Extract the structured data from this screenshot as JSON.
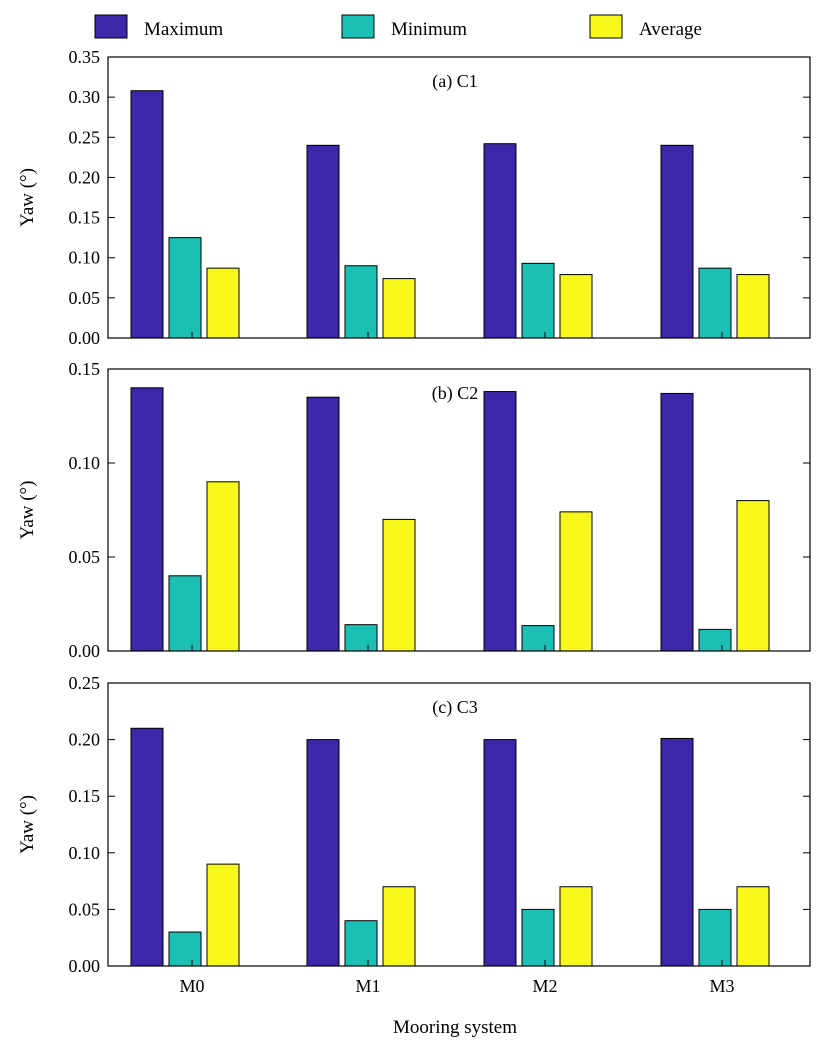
{
  "chart_data": {
    "type": "bar",
    "categories": [
      "M0",
      "M1",
      "M2",
      "M3"
    ],
    "xlabel": "Mooring system",
    "ylabel": "Yaw (°)",
    "legend": [
      {
        "name": "Maximum",
        "color": "#3b28a8"
      },
      {
        "name": "Minimum",
        "color": "#1cbfb3"
      },
      {
        "name": "Average",
        "color": "#f8f71a"
      }
    ],
    "panels": [
      {
        "title": "(a) C1",
        "ylim": [
          0,
          0.35
        ],
        "yticks": [
          "0.00",
          "0.05",
          "0.10",
          "0.15",
          "0.20",
          "0.25",
          "0.30",
          "0.35"
        ],
        "series": [
          {
            "name": "Maximum",
            "values": [
              0.308,
              0.24,
              0.242,
              0.24
            ]
          },
          {
            "name": "Minimum",
            "values": [
              0.125,
              0.09,
              0.093,
              0.087
            ]
          },
          {
            "name": "Average",
            "values": [
              0.087,
              0.074,
              0.079,
              0.079
            ]
          }
        ]
      },
      {
        "title": "(b) C2",
        "ylim": [
          0,
          0.15
        ],
        "yticks": [
          "0.00",
          "0.05",
          "0.10",
          "0.15"
        ],
        "series": [
          {
            "name": "Maximum",
            "values": [
              0.14,
              0.135,
              0.138,
              0.137
            ]
          },
          {
            "name": "Minimum",
            "values": [
              0.04,
              0.014,
              0.0135,
              0.0115
            ]
          },
          {
            "name": "Average",
            "values": [
              0.09,
              0.07,
              0.074,
              0.08
            ]
          }
        ]
      },
      {
        "title": "(c) C3",
        "ylim": [
          0,
          0.25
        ],
        "yticks": [
          "0.00",
          "0.05",
          "0.10",
          "0.15",
          "0.20",
          "0.25"
        ],
        "series": [
          {
            "name": "Maximum",
            "values": [
              0.21,
              0.2,
              0.2,
              0.201
            ]
          },
          {
            "name": "Minimum",
            "values": [
              0.03,
              0.04,
              0.05,
              0.05
            ]
          },
          {
            "name": "Average",
            "values": [
              0.09,
              0.07,
              0.07,
              0.07
            ]
          }
        ]
      }
    ]
  }
}
